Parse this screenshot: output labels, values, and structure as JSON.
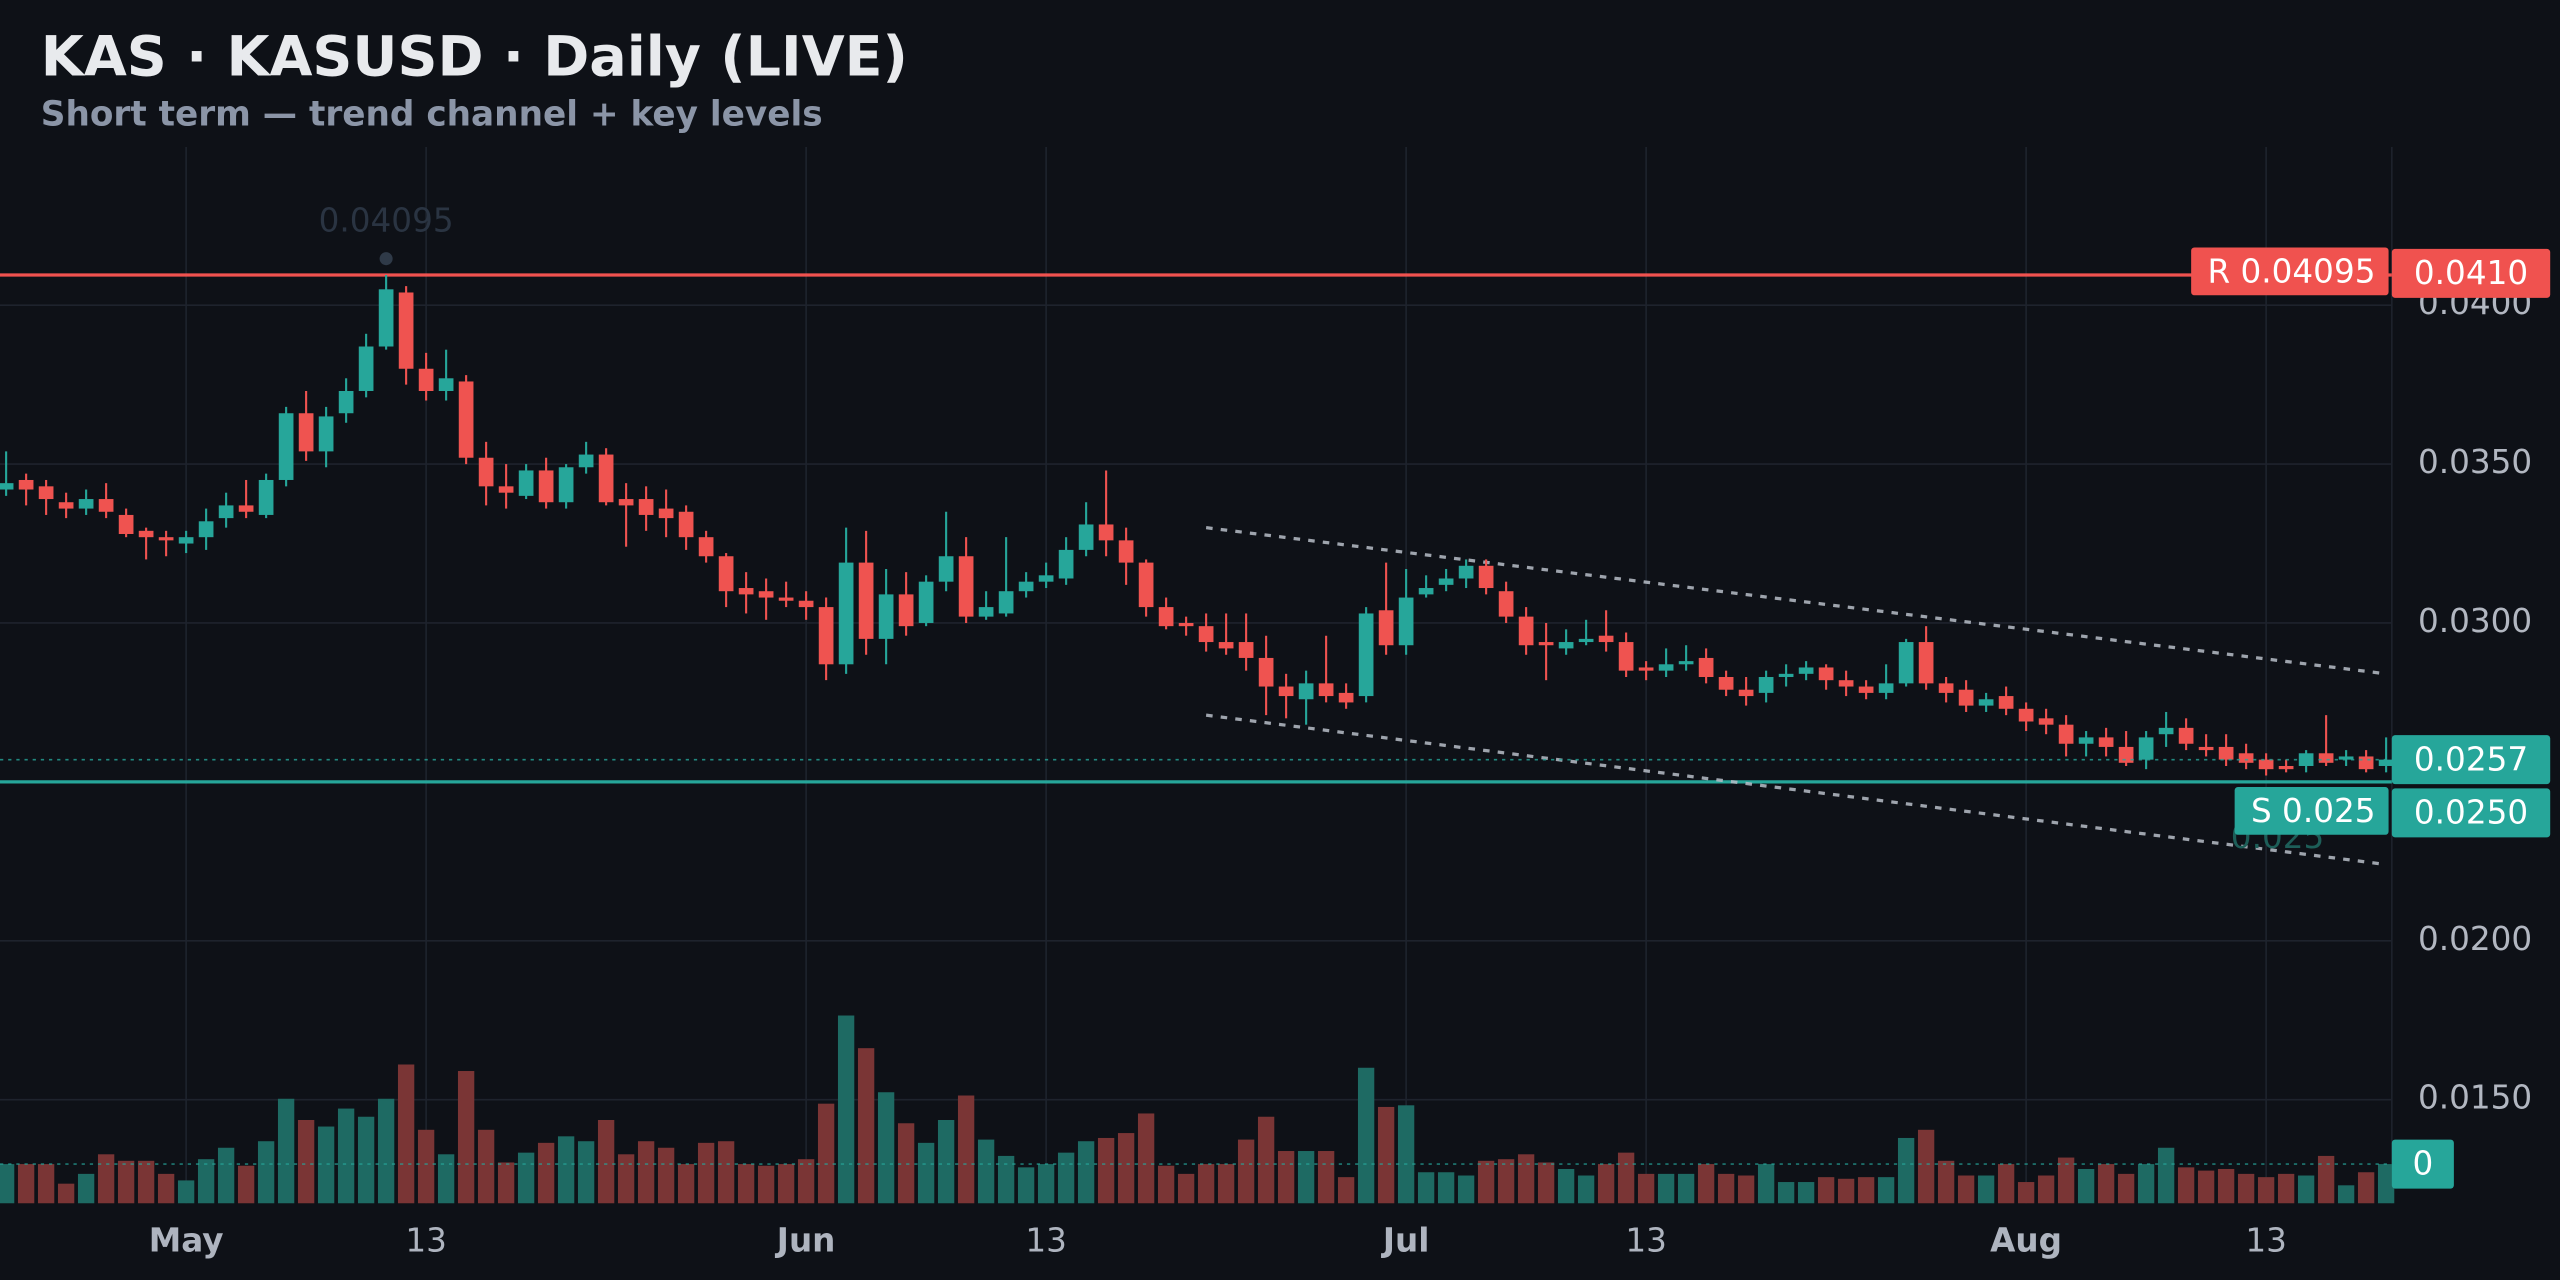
{
  "chart_data": {
    "type": "candlestick",
    "title": "KAS · KASUSD · Daily (LIVE)",
    "subtitle": "Short term — trend channel + key levels",
    "categories": [
      null,
      null,
      null,
      null,
      null,
      null,
      null,
      null,
      null,
      "May",
      null,
      null,
      null,
      null,
      null,
      null,
      null,
      null,
      null,
      null,
      null,
      "13",
      null,
      null,
      null,
      null,
      null,
      null,
      null,
      null,
      null,
      null,
      null,
      null,
      null,
      null,
      null,
      null,
      null,
      null,
      "Jun",
      null,
      null,
      null,
      null,
      null,
      null,
      null,
      null,
      null,
      null,
      null,
      "13",
      null,
      null,
      null,
      null,
      null,
      null,
      null,
      null,
      null,
      null,
      null,
      null,
      null,
      null,
      null,
      null,
      null,
      "Jul",
      null,
      null,
      null,
      null,
      null,
      null,
      null,
      null,
      null,
      null,
      null,
      "13",
      null,
      null,
      null,
      null,
      null,
      null,
      null,
      null,
      null,
      null,
      null,
      null,
      null,
      null,
      null,
      null,
      null,
      null,
      "Aug",
      null,
      null,
      null,
      null,
      null,
      null,
      null,
      null,
      null,
      null,
      null,
      "13",
      null,
      null,
      null,
      null,
      null,
      null
    ],
    "open": [
      0.0342,
      0.0345,
      0.0343,
      0.0338,
      0.0336,
      0.0339,
      0.0334,
      0.0329,
      0.0327,
      0.0325,
      0.0327,
      0.0333,
      0.0337,
      0.0334,
      0.0345,
      0.0366,
      0.0354,
      0.0366,
      0.0373,
      0.0387,
      0.0404,
      0.038,
      0.0373,
      0.0376,
      0.0352,
      0.0343,
      0.034,
      0.0348,
      0.0338,
      0.0349,
      0.0353,
      0.0339,
      0.0339,
      0.0336,
      0.0335,
      0.0327,
      0.0321,
      0.0311,
      0.031,
      0.0308,
      0.0307,
      0.0305,
      0.0287,
      0.0319,
      0.0295,
      0.0309,
      0.03,
      0.0313,
      0.0321,
      0.0302,
      0.0303,
      0.031,
      0.0313,
      0.0314,
      0.0323,
      0.0331,
      0.0326,
      0.0319,
      0.0305,
      0.03,
      0.0299,
      0.0294,
      0.0294,
      0.0289,
      0.028,
      0.0276,
      0.0281,
      0.0278,
      0.0277,
      0.0304,
      0.0293,
      0.0309,
      0.0312,
      0.0314,
      0.0318,
      0.031,
      0.0302,
      0.0294,
      0.0292,
      0.0294,
      0.0296,
      0.0294,
      0.0286,
      0.0285,
      0.0287,
      0.0289,
      0.0283,
      0.0279,
      0.0278,
      0.0283,
      0.0284,
      0.0286,
      0.0282,
      0.028,
      0.0278,
      0.0281,
      0.0294,
      0.0281,
      0.0279,
      0.0274,
      0.0277,
      0.0273,
      0.027,
      0.0268,
      0.0262,
      0.0264,
      0.0261,
      0.0257,
      0.0265,
      0.0267,
      0.0261,
      0.0261,
      0.0259,
      0.0257,
      0.0255,
      0.0255,
      0.0259,
      0.0257,
      0.0258,
      0.0255
    ],
    "high": [
      0.0354,
      0.0347,
      0.0345,
      0.0341,
      0.0342,
      0.0344,
      0.0336,
      0.033,
      0.0329,
      0.0329,
      0.0336,
      0.0341,
      0.0345,
      0.0347,
      0.0368,
      0.0373,
      0.0368,
      0.0377,
      0.0391,
      0.04095,
      0.0406,
      0.0385,
      0.0386,
      0.0378,
      0.0357,
      0.035,
      0.035,
      0.0352,
      0.035,
      0.0357,
      0.0355,
      0.0344,
      0.0343,
      0.0342,
      0.0337,
      0.0329,
      0.0322,
      0.0316,
      0.0314,
      0.0313,
      0.031,
      0.0308,
      0.033,
      0.0329,
      0.0317,
      0.0316,
      0.0315,
      0.0335,
      0.0327,
      0.031,
      0.0327,
      0.0316,
      0.0319,
      0.0327,
      0.0338,
      0.0348,
      0.033,
      0.032,
      0.0308,
      0.0302,
      0.0303,
      0.0303,
      0.0303,
      0.0296,
      0.0284,
      0.0285,
      0.0296,
      0.0281,
      0.0305,
      0.0319,
      0.0317,
      0.0315,
      0.0317,
      0.032,
      0.032,
      0.0313,
      0.0305,
      0.03,
      0.0298,
      0.0301,
      0.0304,
      0.0297,
      0.0288,
      0.0292,
      0.0293,
      0.0292,
      0.0285,
      0.0283,
      0.0285,
      0.0287,
      0.0288,
      0.0287,
      0.0285,
      0.0282,
      0.0287,
      0.0295,
      0.0299,
      0.0283,
      0.0282,
      0.0278,
      0.028,
      0.0275,
      0.0273,
      0.0271,
      0.0266,
      0.0267,
      0.0266,
      0.0266,
      0.0272,
      0.027,
      0.0265,
      0.0265,
      0.0262,
      0.0259,
      0.0257,
      0.026,
      0.0271,
      0.026,
      0.026,
      0.0264
    ],
    "low": [
      0.034,
      0.0337,
      0.0334,
      0.0333,
      0.0334,
      0.0333,
      0.0327,
      0.032,
      0.0321,
      0.0322,
      0.0323,
      0.033,
      0.0333,
      0.0333,
      0.0343,
      0.0351,
      0.0349,
      0.0363,
      0.0371,
      0.0386,
      0.0375,
      0.037,
      0.037,
      0.035,
      0.0337,
      0.0336,
      0.0339,
      0.0336,
      0.0336,
      0.0347,
      0.0337,
      0.0324,
      0.0329,
      0.0327,
      0.0323,
      0.0319,
      0.0305,
      0.0303,
      0.0301,
      0.0305,
      0.0301,
      0.0282,
      0.0284,
      0.029,
      0.0287,
      0.0296,
      0.0299,
      0.031,
      0.03,
      0.0301,
      0.0302,
      0.0308,
      0.0311,
      0.0312,
      0.0321,
      0.0321,
      0.0312,
      0.0302,
      0.0298,
      0.0296,
      0.0291,
      0.029,
      0.0285,
      0.0271,
      0.027,
      0.0268,
      0.0275,
      0.0273,
      0.0275,
      0.029,
      0.029,
      0.0308,
      0.031,
      0.0311,
      0.0309,
      0.03,
      0.029,
      0.0282,
      0.029,
      0.0293,
      0.0291,
      0.0283,
      0.0282,
      0.0283,
      0.0285,
      0.0281,
      0.0277,
      0.0274,
      0.0275,
      0.028,
      0.0282,
      0.0279,
      0.0277,
      0.0276,
      0.0276,
      0.028,
      0.0279,
      0.0275,
      0.0272,
      0.0272,
      0.0271,
      0.0266,
      0.0265,
      0.0258,
      0.0258,
      0.0258,
      0.0255,
      0.0254,
      0.0261,
      0.026,
      0.0258,
      0.0255,
      0.0254,
      0.0252,
      0.0253,
      0.0253,
      0.0255,
      0.0255,
      0.0253,
      0.0253
    ],
    "close": [
      0.0344,
      0.0342,
      0.0339,
      0.0336,
      0.0339,
      0.0335,
      0.0328,
      0.0327,
      0.0326,
      0.0327,
      0.0332,
      0.0337,
      0.0335,
      0.0345,
      0.0366,
      0.0354,
      0.0365,
      0.0373,
      0.0387,
      0.0405,
      0.038,
      0.0373,
      0.0377,
      0.0352,
      0.0343,
      0.0341,
      0.0348,
      0.0338,
      0.0349,
      0.0353,
      0.0338,
      0.0337,
      0.0334,
      0.0333,
      0.0327,
      0.0321,
      0.031,
      0.0309,
      0.0308,
      0.0307,
      0.0305,
      0.0287,
      0.0319,
      0.0295,
      0.0309,
      0.0299,
      0.0313,
      0.0321,
      0.0302,
      0.0305,
      0.031,
      0.0313,
      0.0315,
      0.0323,
      0.0331,
      0.0326,
      0.0319,
      0.0305,
      0.0299,
      0.0299,
      0.0294,
      0.0292,
      0.0289,
      0.028,
      0.0277,
      0.0281,
      0.0277,
      0.0275,
      0.0303,
      0.0293,
      0.0308,
      0.0311,
      0.0314,
      0.0318,
      0.0311,
      0.0302,
      0.0293,
      0.0293,
      0.0294,
      0.0295,
      0.0294,
      0.0285,
      0.0285,
      0.0287,
      0.0288,
      0.0283,
      0.0279,
      0.0277,
      0.0283,
      0.0284,
      0.0286,
      0.0282,
      0.028,
      0.0278,
      0.0281,
      0.0294,
      0.0281,
      0.0278,
      0.0274,
      0.0276,
      0.0273,
      0.0269,
      0.0268,
      0.0262,
      0.0264,
      0.0261,
      0.0256,
      0.0264,
      0.0267,
      0.0262,
      0.026,
      0.0257,
      0.0256,
      0.0254,
      0.0254,
      0.0259,
      0.0256,
      0.0258,
      0.0254,
      0.0257
    ],
    "volume": [
      24,
      24,
      24,
      12,
      18,
      30,
      26,
      26,
      18,
      14,
      27,
      34,
      23,
      38,
      64,
      51,
      47,
      58,
      53,
      64,
      85,
      45,
      30,
      81,
      45,
      25,
      31,
      37,
      41,
      38,
      51,
      30,
      38,
      34,
      24,
      37,
      38,
      24,
      23,
      24,
      27,
      61,
      115,
      95,
      68,
      49,
      37,
      51,
      66,
      39,
      29,
      22,
      24,
      31,
      38,
      40,
      43,
      55,
      23,
      18,
      24,
      24,
      39,
      53,
      32,
      32,
      32,
      16,
      83,
      59,
      60,
      19,
      19,
      17,
      26,
      27,
      30,
      25,
      21,
      17,
      24,
      31,
      18,
      18,
      18,
      24,
      18,
      17,
      24,
      13,
      13,
      16,
      15,
      16,
      16,
      40,
      45,
      26,
      17,
      17,
      24,
      13,
      17,
      28,
      21,
      24,
      18,
      24,
      34,
      22,
      20,
      21,
      18,
      16,
      18,
      17,
      29,
      11,
      19,
      24
    ],
    "up_color": "#26a69a",
    "down_color": "#ef5350",
    "volume_up_color": "#1e6a63",
    "volume_down_color": "#7a3535",
    "ylim": [
      0.01174,
      0.04498
    ],
    "yticks": [
      {
        "value": 0.04,
        "label": "0.0400"
      },
      {
        "value": 0.035,
        "label": "0.0350"
      },
      {
        "value": 0.03,
        "label": "0.0300"
      },
      {
        "value": 0.02,
        "label": "0.0200"
      },
      {
        "value": 0.015,
        "label": "0.0150"
      }
    ],
    "volume_ylim": [
      0,
      150
    ],
    "grid": true,
    "levels": [
      {
        "label": "R 0.04095",
        "value": 0.04095,
        "axis_label": "0.0410",
        "color": "#f0524f"
      },
      {
        "label": "S 0.025",
        "value": 0.025,
        "axis_label": "0.0250",
        "color": "#26a69a"
      }
    ],
    "channel": {
      "color": "#b8bec8",
      "lines": [
        {
          "values": [
            0.033,
            0.0284
          ]
        },
        {
          "values": [
            0.0271,
            0.0224
          ]
        }
      ]
    },
    "last_label": "0.0257",
    "volume_last_label": "0",
    "high_note": "0.04095",
    "support_note": "0.025"
  }
}
